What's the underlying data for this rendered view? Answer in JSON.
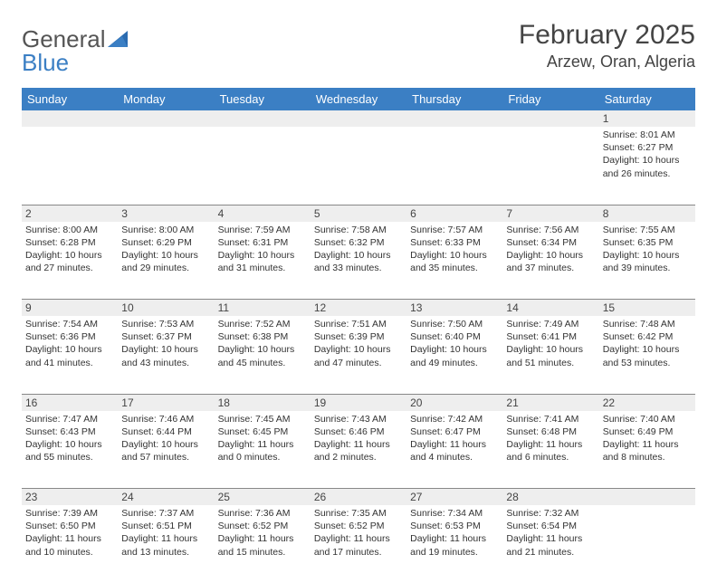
{
  "logo": {
    "text1": "General",
    "text2": "Blue"
  },
  "header": {
    "month_year": "February 2025",
    "location": "Arzew, Oran, Algeria"
  },
  "colors": {
    "header_bg": "#3b7fc4",
    "header_text": "#ffffff",
    "daynum_bg": "#eeeeee",
    "border": "#888888",
    "text": "#333333"
  },
  "weekdays": [
    "Sunday",
    "Monday",
    "Tuesday",
    "Wednesday",
    "Thursday",
    "Friday",
    "Saturday"
  ],
  "weeks": [
    {
      "days": [
        {
          "n": "",
          "sunrise": "",
          "sunset": "",
          "d1": "",
          "d2": ""
        },
        {
          "n": "",
          "sunrise": "",
          "sunset": "",
          "d1": "",
          "d2": ""
        },
        {
          "n": "",
          "sunrise": "",
          "sunset": "",
          "d1": "",
          "d2": ""
        },
        {
          "n": "",
          "sunrise": "",
          "sunset": "",
          "d1": "",
          "d2": ""
        },
        {
          "n": "",
          "sunrise": "",
          "sunset": "",
          "d1": "",
          "d2": ""
        },
        {
          "n": "",
          "sunrise": "",
          "sunset": "",
          "d1": "",
          "d2": ""
        },
        {
          "n": "1",
          "sunrise": "Sunrise: 8:01 AM",
          "sunset": "Sunset: 6:27 PM",
          "d1": "Daylight: 10 hours",
          "d2": "and 26 minutes."
        }
      ]
    },
    {
      "days": [
        {
          "n": "2",
          "sunrise": "Sunrise: 8:00 AM",
          "sunset": "Sunset: 6:28 PM",
          "d1": "Daylight: 10 hours",
          "d2": "and 27 minutes."
        },
        {
          "n": "3",
          "sunrise": "Sunrise: 8:00 AM",
          "sunset": "Sunset: 6:29 PM",
          "d1": "Daylight: 10 hours",
          "d2": "and 29 minutes."
        },
        {
          "n": "4",
          "sunrise": "Sunrise: 7:59 AM",
          "sunset": "Sunset: 6:31 PM",
          "d1": "Daylight: 10 hours",
          "d2": "and 31 minutes."
        },
        {
          "n": "5",
          "sunrise": "Sunrise: 7:58 AM",
          "sunset": "Sunset: 6:32 PM",
          "d1": "Daylight: 10 hours",
          "d2": "and 33 minutes."
        },
        {
          "n": "6",
          "sunrise": "Sunrise: 7:57 AM",
          "sunset": "Sunset: 6:33 PM",
          "d1": "Daylight: 10 hours",
          "d2": "and 35 minutes."
        },
        {
          "n": "7",
          "sunrise": "Sunrise: 7:56 AM",
          "sunset": "Sunset: 6:34 PM",
          "d1": "Daylight: 10 hours",
          "d2": "and 37 minutes."
        },
        {
          "n": "8",
          "sunrise": "Sunrise: 7:55 AM",
          "sunset": "Sunset: 6:35 PM",
          "d1": "Daylight: 10 hours",
          "d2": "and 39 minutes."
        }
      ]
    },
    {
      "days": [
        {
          "n": "9",
          "sunrise": "Sunrise: 7:54 AM",
          "sunset": "Sunset: 6:36 PM",
          "d1": "Daylight: 10 hours",
          "d2": "and 41 minutes."
        },
        {
          "n": "10",
          "sunrise": "Sunrise: 7:53 AM",
          "sunset": "Sunset: 6:37 PM",
          "d1": "Daylight: 10 hours",
          "d2": "and 43 minutes."
        },
        {
          "n": "11",
          "sunrise": "Sunrise: 7:52 AM",
          "sunset": "Sunset: 6:38 PM",
          "d1": "Daylight: 10 hours",
          "d2": "and 45 minutes."
        },
        {
          "n": "12",
          "sunrise": "Sunrise: 7:51 AM",
          "sunset": "Sunset: 6:39 PM",
          "d1": "Daylight: 10 hours",
          "d2": "and 47 minutes."
        },
        {
          "n": "13",
          "sunrise": "Sunrise: 7:50 AM",
          "sunset": "Sunset: 6:40 PM",
          "d1": "Daylight: 10 hours",
          "d2": "and 49 minutes."
        },
        {
          "n": "14",
          "sunrise": "Sunrise: 7:49 AM",
          "sunset": "Sunset: 6:41 PM",
          "d1": "Daylight: 10 hours",
          "d2": "and 51 minutes."
        },
        {
          "n": "15",
          "sunrise": "Sunrise: 7:48 AM",
          "sunset": "Sunset: 6:42 PM",
          "d1": "Daylight: 10 hours",
          "d2": "and 53 minutes."
        }
      ]
    },
    {
      "days": [
        {
          "n": "16",
          "sunrise": "Sunrise: 7:47 AM",
          "sunset": "Sunset: 6:43 PM",
          "d1": "Daylight: 10 hours",
          "d2": "and 55 minutes."
        },
        {
          "n": "17",
          "sunrise": "Sunrise: 7:46 AM",
          "sunset": "Sunset: 6:44 PM",
          "d1": "Daylight: 10 hours",
          "d2": "and 57 minutes."
        },
        {
          "n": "18",
          "sunrise": "Sunrise: 7:45 AM",
          "sunset": "Sunset: 6:45 PM",
          "d1": "Daylight: 11 hours",
          "d2": "and 0 minutes."
        },
        {
          "n": "19",
          "sunrise": "Sunrise: 7:43 AM",
          "sunset": "Sunset: 6:46 PM",
          "d1": "Daylight: 11 hours",
          "d2": "and 2 minutes."
        },
        {
          "n": "20",
          "sunrise": "Sunrise: 7:42 AM",
          "sunset": "Sunset: 6:47 PM",
          "d1": "Daylight: 11 hours",
          "d2": "and 4 minutes."
        },
        {
          "n": "21",
          "sunrise": "Sunrise: 7:41 AM",
          "sunset": "Sunset: 6:48 PM",
          "d1": "Daylight: 11 hours",
          "d2": "and 6 minutes."
        },
        {
          "n": "22",
          "sunrise": "Sunrise: 7:40 AM",
          "sunset": "Sunset: 6:49 PM",
          "d1": "Daylight: 11 hours",
          "d2": "and 8 minutes."
        }
      ]
    },
    {
      "days": [
        {
          "n": "23",
          "sunrise": "Sunrise: 7:39 AM",
          "sunset": "Sunset: 6:50 PM",
          "d1": "Daylight: 11 hours",
          "d2": "and 10 minutes."
        },
        {
          "n": "24",
          "sunrise": "Sunrise: 7:37 AM",
          "sunset": "Sunset: 6:51 PM",
          "d1": "Daylight: 11 hours",
          "d2": "and 13 minutes."
        },
        {
          "n": "25",
          "sunrise": "Sunrise: 7:36 AM",
          "sunset": "Sunset: 6:52 PM",
          "d1": "Daylight: 11 hours",
          "d2": "and 15 minutes."
        },
        {
          "n": "26",
          "sunrise": "Sunrise: 7:35 AM",
          "sunset": "Sunset: 6:52 PM",
          "d1": "Daylight: 11 hours",
          "d2": "and 17 minutes."
        },
        {
          "n": "27",
          "sunrise": "Sunrise: 7:34 AM",
          "sunset": "Sunset: 6:53 PM",
          "d1": "Daylight: 11 hours",
          "d2": "and 19 minutes."
        },
        {
          "n": "28",
          "sunrise": "Sunrise: 7:32 AM",
          "sunset": "Sunset: 6:54 PM",
          "d1": "Daylight: 11 hours",
          "d2": "and 21 minutes."
        },
        {
          "n": "",
          "sunrise": "",
          "sunset": "",
          "d1": "",
          "d2": ""
        }
      ]
    }
  ]
}
